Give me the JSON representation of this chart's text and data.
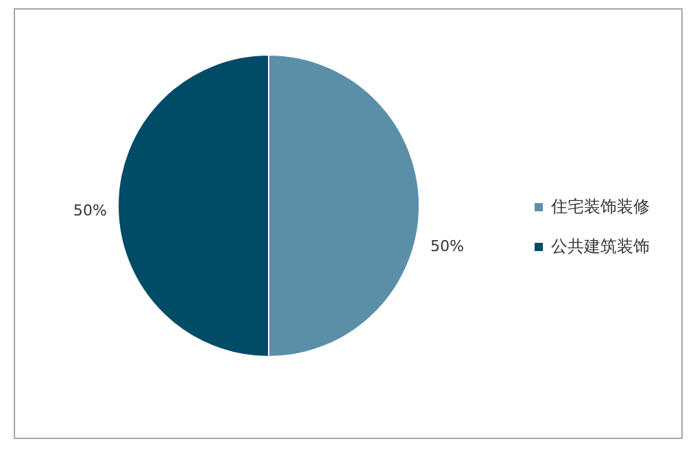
{
  "chart_data": {
    "type": "pie",
    "categories": [
      "住宅装饰装修",
      "公共建筑装饰"
    ],
    "values": [
      50,
      50
    ],
    "colors": [
      "#5b8fa8",
      "#004c66"
    ],
    "value_labels": [
      "50%",
      "50%"
    ],
    "legend": "right"
  }
}
